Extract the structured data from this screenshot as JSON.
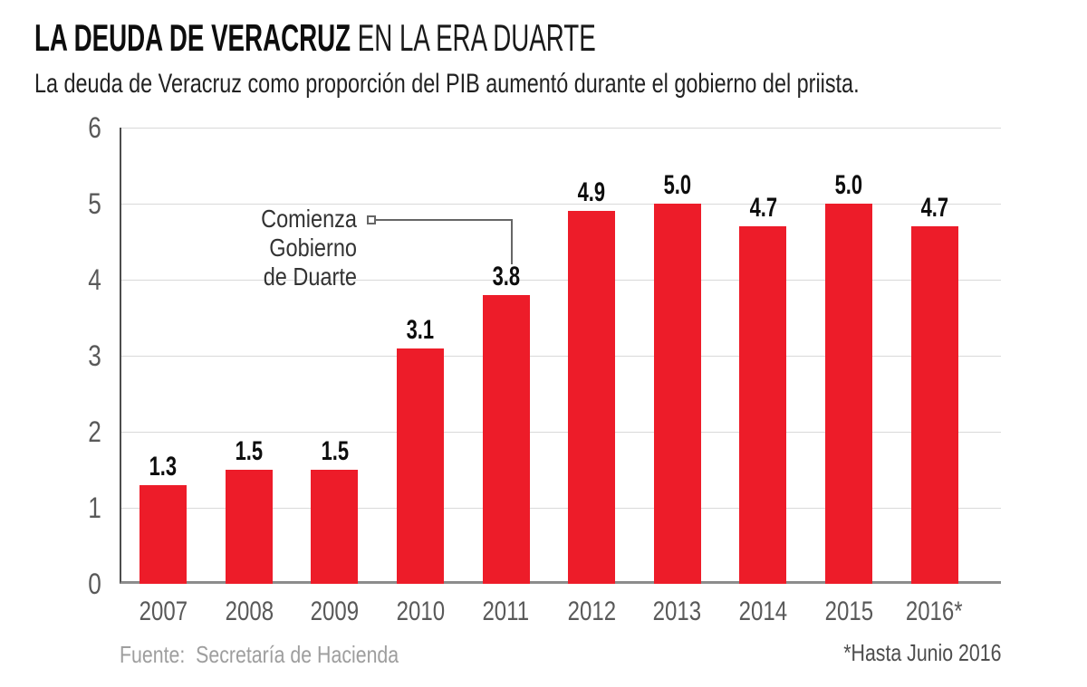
{
  "header": {
    "title_bold": "LA DEUDA DE VERACRUZ",
    "title_light": " EN LA ERA DUARTE",
    "subtitle": "La deuda de Veracruz como proporción del PIB aumentó durante el gobierno del priista."
  },
  "chart_data": {
    "type": "bar",
    "title": "LA DEUDA DE VERACRUZ EN LA ERA DUARTE",
    "subtitle": "La deuda de Veracruz como proporción del PIB aumentó durante el gobierno del priista.",
    "categories": [
      "2007",
      "2008",
      "2009",
      "2010",
      "2011",
      "2012",
      "2013",
      "2014",
      "2015",
      "2016*"
    ],
    "values": [
      1.3,
      1.5,
      1.5,
      3.1,
      3.8,
      4.9,
      5.0,
      4.7,
      5.0,
      4.7
    ],
    "value_labels": [
      "1.3",
      "1.5",
      "1.5",
      "3.1",
      "3.8",
      "4.9",
      "5.0",
      "4.7",
      "5.0",
      "4.7"
    ],
    "xlabel": "",
    "ylabel": "",
    "ylim": [
      0,
      6
    ],
    "yticks": [
      0,
      1,
      2,
      3,
      4,
      5,
      6
    ],
    "grid": true,
    "legend": false,
    "bar_color": "#ED1C29",
    "annotation": {
      "lines": [
        "Comienza",
        "Gobierno",
        "de Duarte"
      ],
      "target_category": "2011"
    }
  },
  "annotation": {
    "lines": [
      "Comienza",
      "Gobierno",
      "de Duarte"
    ]
  },
  "footer": {
    "source": "Fuente:  Secretaría de Hacienda",
    "note": "*Hasta Junio 2016"
  },
  "colors": {
    "bar": "#ED1C29",
    "gridline": "#d9d9d9",
    "axis_line": "#4d4d4d",
    "baseline": "#8c8c8c",
    "tick_text": "#595959",
    "title_text": "#0d0d0d",
    "subtitle_text": "#222222",
    "annotation_text": "#333333",
    "annotation_line": "#666666",
    "source_text": "#9e9e9e",
    "note_text": "#4d4d4d"
  }
}
